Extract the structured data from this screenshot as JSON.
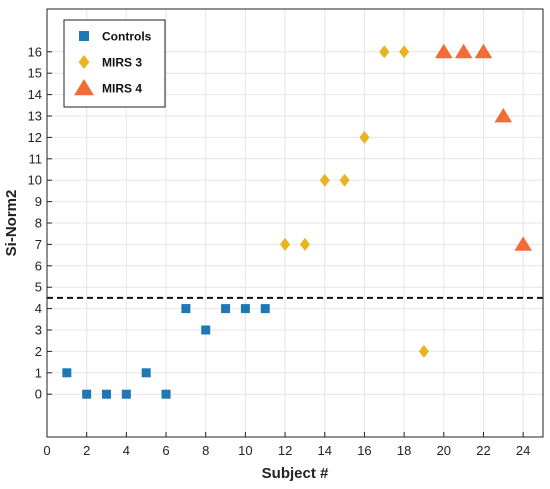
{
  "chart_data": {
    "type": "scatter",
    "xlabel": "Subject #",
    "ylabel": "Si-Norm2",
    "xlim": [
      0,
      25
    ],
    "ylim": [
      -2,
      18
    ],
    "x_ticks": [
      0,
      2,
      4,
      6,
      8,
      10,
      12,
      14,
      16,
      18,
      20,
      22,
      24
    ],
    "y_ticks": [
      0,
      1,
      2,
      3,
      4,
      5,
      6,
      7,
      8,
      9,
      10,
      11,
      12,
      13,
      14,
      15,
      16
    ],
    "grid": true,
    "legend_position": "top-left",
    "threshold_line": {
      "y": 4.5,
      "style": "dashed",
      "color": "#111111"
    },
    "series": [
      {
        "name": "Controls",
        "marker": "square",
        "color": "#1f77b4",
        "points": [
          [
            1,
            1
          ],
          [
            2,
            0
          ],
          [
            3,
            0
          ],
          [
            4,
            0
          ],
          [
            5,
            1
          ],
          [
            6,
            0
          ],
          [
            7,
            4
          ],
          [
            8,
            3
          ],
          [
            9,
            4
          ],
          [
            10,
            4
          ],
          [
            11,
            4
          ]
        ]
      },
      {
        "name": "MIRS 3",
        "marker": "diamond",
        "color": "#e8b421",
        "points": [
          [
            12,
            7
          ],
          [
            13,
            7
          ],
          [
            14,
            10
          ],
          [
            15,
            10
          ],
          [
            16,
            12
          ],
          [
            17,
            16
          ],
          [
            18,
            16
          ],
          [
            19,
            2
          ]
        ]
      },
      {
        "name": "MIRS 4",
        "marker": "triangle",
        "color": "#f26b38",
        "points": [
          [
            20,
            16
          ],
          [
            21,
            16
          ],
          [
            22,
            16
          ],
          [
            23,
            13
          ],
          [
            24,
            7
          ]
        ]
      }
    ]
  }
}
